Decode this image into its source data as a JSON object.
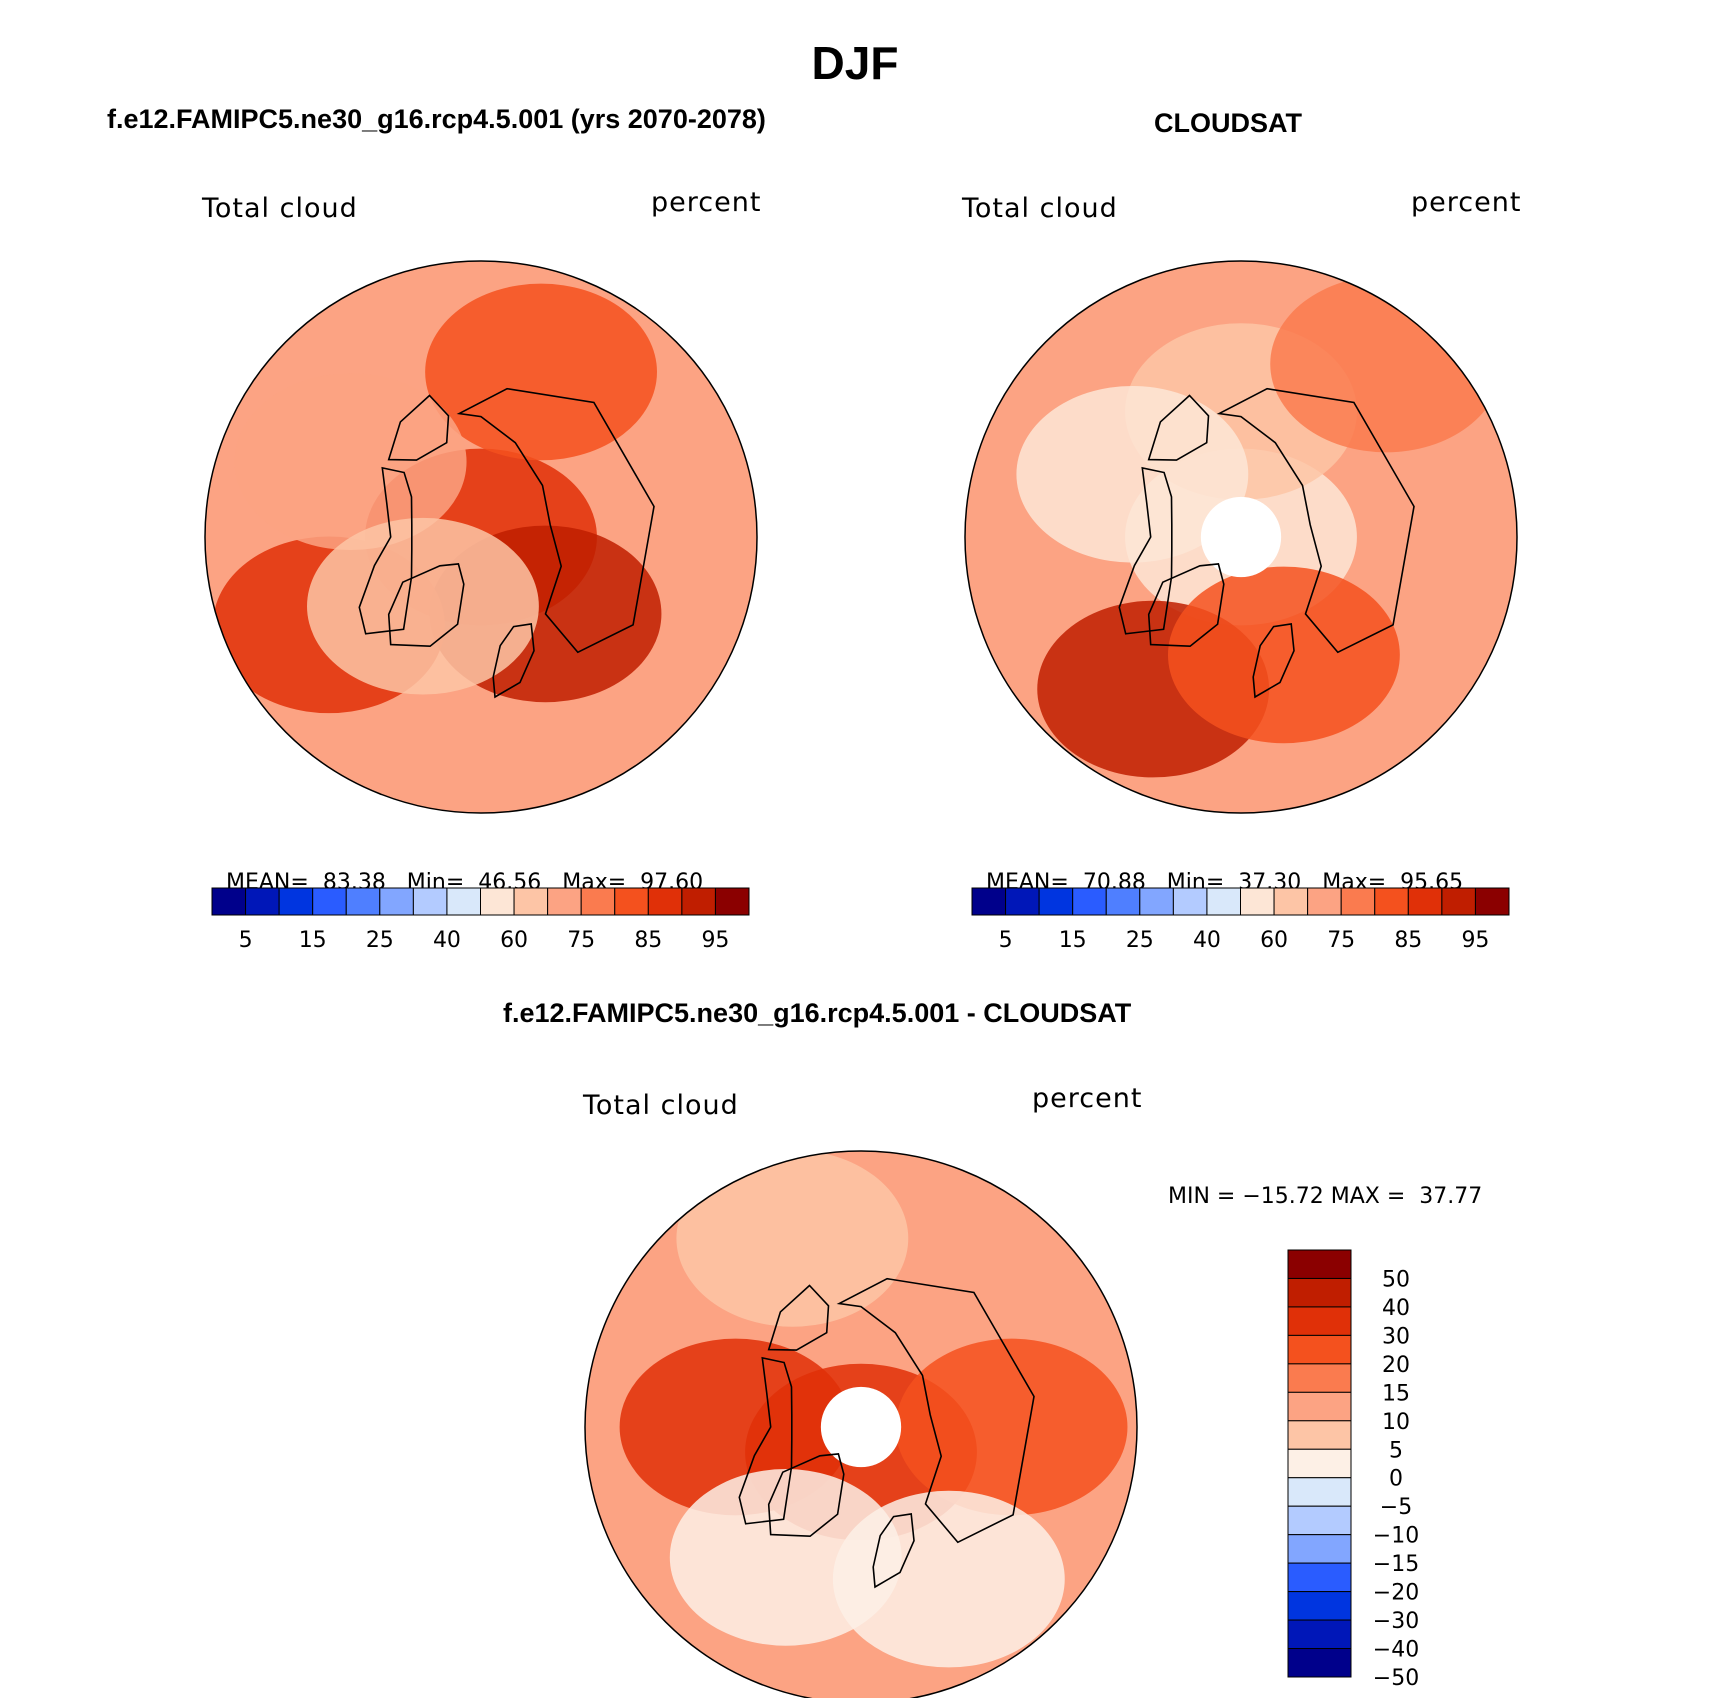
{
  "figure": {
    "title": "DJF"
  },
  "colors": {
    "abs": [
      "#00008b",
      "#0017b8",
      "#0035e0",
      "#2a5cff",
      "#4f7fff",
      "#82a6ff",
      "#b3cbff",
      "#d9e8fa",
      "#fde6d6",
      "#fdc5a6",
      "#fca383",
      "#fa7b4f",
      "#f4511e",
      "#e03008",
      "#c01e00",
      "#8b0000"
    ],
    "diff": [
      "#00008b",
      "#0017b8",
      "#0035e0",
      "#2a5cff",
      "#82a6ff",
      "#b3cbff",
      "#d9e8fa",
      "#fdf0e6",
      "#fdc5a6",
      "#fca383",
      "#fa7b4f",
      "#f4511e",
      "#e03008",
      "#c01e00",
      "#8b0000"
    ]
  },
  "chart_data": [
    {
      "type": "heatmap",
      "title": "f.e12.FAMIPC5.ne30_g16.rcp4.5.001 (yrs 2070-2078)",
      "variable_label": "Total cloud",
      "units_label": "percent",
      "projection": "north-polar-stereographic",
      "stats": {
        "mean_label": "MEAN=",
        "mean": "83.38",
        "min_label": "Min=",
        "min": "46.56",
        "max_label": "Max=",
        "max": "97.60"
      },
      "colorbar": {
        "orientation": "horizontal",
        "tick_labels": [
          "5",
          "15",
          "25",
          "40",
          "60",
          "75",
          "85",
          "95"
        ]
      },
      "regions": [
        {
          "lon": 0,
          "lat": 90,
          "level": 13
        },
        {
          "lon": 40,
          "lat": 70,
          "level": 14
        },
        {
          "lon": 300,
          "lat": 55,
          "level": 13
        },
        {
          "lon": 160,
          "lat": 55,
          "level": 12
        },
        {
          "lon": 240,
          "lat": 60,
          "level": 10
        },
        {
          "lon": 320,
          "lat": 72,
          "level": 9
        }
      ]
    },
    {
      "type": "heatmap",
      "title": "CLOUDSAT",
      "variable_label": "Total cloud",
      "units_label": "percent",
      "projection": "north-polar-stereographic",
      "stats": {
        "mean_label": "MEAN=",
        "mean": "70.88",
        "min_label": "Min=",
        "min": "37.30",
        "max_label": "Max=",
        "max": "95.65"
      },
      "colorbar": {
        "orientation": "horizontal",
        "tick_labels": [
          "5",
          "15",
          "25",
          "40",
          "60",
          "75",
          "85",
          "95"
        ]
      },
      "regions": [
        {
          "lon": 0,
          "lat": 90,
          "level": 8
        },
        {
          "lon": 330,
          "lat": 55,
          "level": 14
        },
        {
          "lon": 20,
          "lat": 65,
          "level": 12
        },
        {
          "lon": 180,
          "lat": 65,
          "level": 9
        },
        {
          "lon": 240,
          "lat": 65,
          "level": 8
        },
        {
          "lon": 140,
          "lat": 45,
          "level": 11
        }
      ],
      "missing_polar_cap_lat": 82
    },
    {
      "type": "heatmap",
      "title": "f.e12.FAMIPC5.ne30_g16.rcp4.5.001 - CLOUDSAT",
      "variable_label": "Total cloud",
      "units_label": "percent",
      "projection": "north-polar-stereographic",
      "stats": {
        "text": "MIN = −15.72 MAX =  37.77"
      },
      "colorbar": {
        "orientation": "vertical",
        "tick_labels": [
          "50",
          "40",
          "30",
          "20",
          "15",
          "10",
          "5",
          "0",
          "−5",
          "−10",
          "−15",
          "−20",
          "−30",
          "−40",
          "−50"
        ]
      },
      "regions": [
        {
          "lon": 0,
          "lat": 85,
          "level": 12
        },
        {
          "lon": 90,
          "lat": 60,
          "level": 11
        },
        {
          "lon": 270,
          "lat": 65,
          "level": 12
        },
        {
          "lon": 330,
          "lat": 60,
          "level": 7
        },
        {
          "lon": 200,
          "lat": 50,
          "level": 8
        },
        {
          "lon": 30,
          "lat": 55,
          "level": 7
        }
      ],
      "missing_polar_cap_lat": 82
    }
  ]
}
